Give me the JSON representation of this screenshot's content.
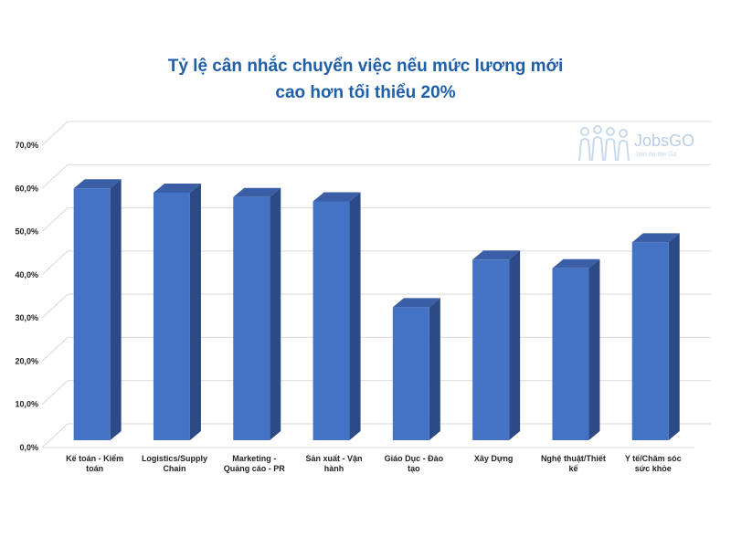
{
  "chart_data": {
    "type": "bar",
    "title_lines": [
      "Tỷ lệ cân nhắc chuyển việc nếu mức lương mới",
      "cao hơn tối thiểu 20%"
    ],
    "categories": [
      [
        "Kế toán - Kiểm",
        "toán"
      ],
      [
        "Logistics/Supply",
        "Chain"
      ],
      [
        "Marketing -",
        "Quảng cáo - PR"
      ],
      [
        "Sản xuất - Vận",
        "hành"
      ],
      [
        "Giáo Dục - Đào",
        "tạo"
      ],
      [
        "Xây Dựng"
      ],
      [
        "Nghệ thuật/Thiết",
        "kế"
      ],
      [
        "Y tế/Chăm sóc",
        "sức khỏe"
      ]
    ],
    "values": [
      60.0,
      59.0,
      58.0,
      57.0,
      32.5,
      43.5,
      41.5,
      47.5
    ],
    "ylim": [
      0,
      70
    ],
    "yticks": [
      "0,0%",
      "10,0%",
      "20,0%",
      "30,0%",
      "40,0%",
      "50,0%",
      "60,0%",
      "70,0%"
    ],
    "grid": true,
    "bar_color": "#4472c4",
    "bar_side_color": "#2b4a86",
    "bar_top_color": "#3a5fa6"
  },
  "watermark": {
    "brand_text": "JobsGO",
    "tagline": "Join on the Go",
    "icon": "people-icon"
  }
}
